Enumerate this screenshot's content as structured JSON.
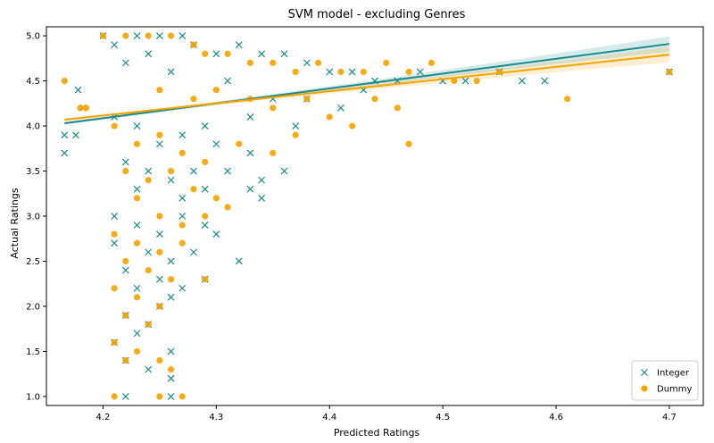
{
  "chart_data": {
    "type": "scatter",
    "title": "SVM model - excluding Genres",
    "xlabel": "Predicted Ratings",
    "ylabel": "Actual Ratings",
    "xlim": [
      4.15,
      4.73
    ],
    "ylim": [
      0.9,
      5.1
    ],
    "x_ticks": [
      {
        "value": 4.2,
        "label": "4.2"
      },
      {
        "value": 4.3,
        "label": "4.3"
      },
      {
        "value": 4.4,
        "label": "4.4"
      },
      {
        "value": 4.5,
        "label": "4.5"
      },
      {
        "value": 4.6,
        "label": "4.6"
      },
      {
        "value": 4.7,
        "label": "4.7"
      }
    ],
    "y_ticks": [
      {
        "value": 1.0,
        "label": "1.0"
      },
      {
        "value": 1.5,
        "label": "1.5"
      },
      {
        "value": 2.0,
        "label": "2.0"
      },
      {
        "value": 2.5,
        "label": "2.5"
      },
      {
        "value": 3.0,
        "label": "3.0"
      },
      {
        "value": 3.5,
        "label": "3.5"
      },
      {
        "value": 4.0,
        "label": "4.0"
      },
      {
        "value": 4.5,
        "label": "4.5"
      },
      {
        "value": 5.0,
        "label": "5.0"
      }
    ],
    "grid": false,
    "legend_position": "bottom-right",
    "series": [
      {
        "name": "Integer",
        "marker": "x",
        "color": "#1a8a8a",
        "trend": {
          "x": [
            4.166,
            4.7
          ],
          "y": [
            4.03,
            4.91
          ],
          "ci_band": true
        },
        "points": [
          [
            4.166,
            3.7
          ],
          [
            4.166,
            3.9
          ],
          [
            4.176,
            3.9
          ],
          [
            4.178,
            4.4
          ],
          [
            4.182,
            4.2
          ],
          [
            4.2,
            5.0
          ],
          [
            4.21,
            4.9
          ],
          [
            4.23,
            5.0
          ],
          [
            4.24,
            4.8
          ],
          [
            4.25,
            5.0
          ],
          [
            4.27,
            5.0
          ],
          [
            4.28,
            4.9
          ],
          [
            4.3,
            4.8
          ],
          [
            4.32,
            4.9
          ],
          [
            4.34,
            4.8
          ],
          [
            4.36,
            4.8
          ],
          [
            4.38,
            4.7
          ],
          [
            4.4,
            4.6
          ],
          [
            4.42,
            4.6
          ],
          [
            4.44,
            4.5
          ],
          [
            4.46,
            4.5
          ],
          [
            4.48,
            4.6
          ],
          [
            4.5,
            4.5
          ],
          [
            4.52,
            4.5
          ],
          [
            4.55,
            4.6
          ],
          [
            4.57,
            4.5
          ],
          [
            4.59,
            4.5
          ],
          [
            4.7,
            4.6
          ],
          [
            4.22,
            4.7
          ],
          [
            4.26,
            4.6
          ],
          [
            4.31,
            4.5
          ],
          [
            4.35,
            4.3
          ],
          [
            4.38,
            4.3
          ],
          [
            4.41,
            4.2
          ],
          [
            4.43,
            4.4
          ],
          [
            4.37,
            4.0
          ],
          [
            4.33,
            4.1
          ],
          [
            4.29,
            4.0
          ],
          [
            4.21,
            4.1
          ],
          [
            4.23,
            4.0
          ],
          [
            4.25,
            3.8
          ],
          [
            4.27,
            3.9
          ],
          [
            4.3,
            3.8
          ],
          [
            4.33,
            3.7
          ],
          [
            4.22,
            3.6
          ],
          [
            4.24,
            3.5
          ],
          [
            4.26,
            3.4
          ],
          [
            4.28,
            3.5
          ],
          [
            4.31,
            3.5
          ],
          [
            4.34,
            3.4
          ],
          [
            4.36,
            3.5
          ],
          [
            4.23,
            3.3
          ],
          [
            4.27,
            3.2
          ],
          [
            4.29,
            3.3
          ],
          [
            4.33,
            3.3
          ],
          [
            4.34,
            3.2
          ],
          [
            4.21,
            3.0
          ],
          [
            4.23,
            2.9
          ],
          [
            4.25,
            2.8
          ],
          [
            4.27,
            3.0
          ],
          [
            4.29,
            2.9
          ],
          [
            4.3,
            2.8
          ],
          [
            4.21,
            2.7
          ],
          [
            4.24,
            2.6
          ],
          [
            4.26,
            2.5
          ],
          [
            4.28,
            2.6
          ],
          [
            4.32,
            2.5
          ],
          [
            4.22,
            2.4
          ],
          [
            4.25,
            2.3
          ],
          [
            4.27,
            2.2
          ],
          [
            4.29,
            2.3
          ],
          [
            4.23,
            2.2
          ],
          [
            4.26,
            2.1
          ],
          [
            4.25,
            2.0
          ],
          [
            4.22,
            1.9
          ],
          [
            4.24,
            1.8
          ],
          [
            4.23,
            1.7
          ],
          [
            4.21,
            1.6
          ],
          [
            4.26,
            1.5
          ],
          [
            4.22,
            1.4
          ],
          [
            4.24,
            1.3
          ],
          [
            4.26,
            1.2
          ],
          [
            4.22,
            1.0
          ],
          [
            4.26,
            1.0
          ]
        ]
      },
      {
        "name": "Dummy",
        "marker": "o",
        "color": "#f5a300",
        "trend": {
          "x": [
            4.166,
            4.7
          ],
          "y": [
            4.07,
            4.79
          ],
          "ci_band": true
        },
        "points": [
          [
            4.166,
            4.5
          ],
          [
            4.18,
            4.2
          ],
          [
            4.185,
            4.2
          ],
          [
            4.2,
            5.0
          ],
          [
            4.22,
            5.0
          ],
          [
            4.24,
            5.0
          ],
          [
            4.26,
            5.0
          ],
          [
            4.28,
            4.9
          ],
          [
            4.29,
            4.8
          ],
          [
            4.31,
            4.8
          ],
          [
            4.33,
            4.7
          ],
          [
            4.35,
            4.7
          ],
          [
            4.37,
            4.6
          ],
          [
            4.39,
            4.7
          ],
          [
            4.41,
            4.6
          ],
          [
            4.43,
            4.6
          ],
          [
            4.45,
            4.7
          ],
          [
            4.47,
            4.6
          ],
          [
            4.49,
            4.7
          ],
          [
            4.51,
            4.5
          ],
          [
            4.53,
            4.5
          ],
          [
            4.55,
            4.6
          ],
          [
            4.61,
            4.3
          ],
          [
            4.7,
            4.6
          ],
          [
            4.25,
            4.4
          ],
          [
            4.28,
            4.3
          ],
          [
            4.3,
            4.4
          ],
          [
            4.33,
            4.3
          ],
          [
            4.35,
            4.2
          ],
          [
            4.38,
            4.3
          ],
          [
            4.4,
            4.1
          ],
          [
            4.42,
            4.0
          ],
          [
            4.44,
            4.3
          ],
          [
            4.46,
            4.2
          ],
          [
            4.47,
            3.8
          ],
          [
            4.37,
            3.9
          ],
          [
            4.35,
            3.7
          ],
          [
            4.32,
            3.8
          ],
          [
            4.21,
            4.0
          ],
          [
            4.23,
            3.8
          ],
          [
            4.25,
            3.9
          ],
          [
            4.27,
            3.7
          ],
          [
            4.29,
            3.6
          ],
          [
            4.22,
            3.5
          ],
          [
            4.24,
            3.4
          ],
          [
            4.26,
            3.5
          ],
          [
            4.28,
            3.3
          ],
          [
            4.3,
            3.2
          ],
          [
            4.31,
            3.1
          ],
          [
            4.23,
            3.2
          ],
          [
            4.25,
            3.0
          ],
          [
            4.27,
            2.9
          ],
          [
            4.29,
            3.0
          ],
          [
            4.21,
            2.8
          ],
          [
            4.23,
            2.7
          ],
          [
            4.25,
            2.6
          ],
          [
            4.27,
            2.7
          ],
          [
            4.29,
            2.3
          ],
          [
            4.22,
            2.5
          ],
          [
            4.24,
            2.4
          ],
          [
            4.26,
            2.3
          ],
          [
            4.21,
            2.2
          ],
          [
            4.23,
            2.1
          ],
          [
            4.25,
            2.0
          ],
          [
            4.22,
            1.9
          ],
          [
            4.24,
            1.8
          ],
          [
            4.21,
            1.6
          ],
          [
            4.23,
            1.5
          ],
          [
            4.22,
            1.4
          ],
          [
            4.25,
            1.4
          ],
          [
            4.26,
            1.3
          ],
          [
            4.21,
            1.0
          ],
          [
            4.25,
            1.0
          ],
          [
            4.27,
            1.0
          ]
        ]
      }
    ]
  }
}
